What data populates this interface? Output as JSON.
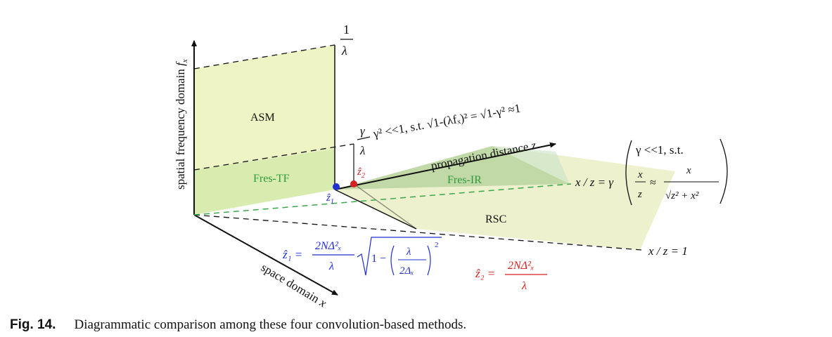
{
  "figure": {
    "axes": {
      "vertical": "spatial frequency domain",
      "vertical_var": "f",
      "vertical_sub": "x",
      "depth": "space domain",
      "depth_var": "x",
      "horizontal": "propagation distance",
      "horizontal_var": "z"
    },
    "regions": {
      "asm": "ASM",
      "fres_tf": "Fres-TF",
      "fres_ir": "Fres-IR",
      "rsc": "RSC"
    },
    "labels": {
      "top_num": "1",
      "top_den": "λ",
      "gamma_num": "γ",
      "gamma_den": "λ",
      "gamma_cond": "γ² <<1, s.t. √1-(λfₓ)² = √1-γ² ≈1",
      "line_gamma": "x / z = γ",
      "line_one": "x / z = 1",
      "cond2_line1": "γ <<1, s.t.",
      "cond2_x": "x",
      "cond2_z": "z",
      "cond2_approx": "≈",
      "cond2_rhs_num": "x",
      "cond2_rhs_den": "√z² + x²",
      "z1_hat": "ẑ",
      "z1_sub": "1",
      "z2_hat": "ẑ",
      "z2_sub": "2"
    },
    "formulas": {
      "z1_lhs": "ẑ₁ =",
      "z1_num": "2NΔ²ₓ",
      "z1_den": "λ",
      "z1_sqrt_one": "1 −",
      "z1_inner_num": "λ",
      "z1_inner_den": "2Δₓ",
      "z1_power": "2",
      "z2_lhs": "ẑ₂ =",
      "z2_num": "2NΔ²ₓ",
      "z2_den": "λ"
    },
    "colors": {
      "asm_fill": "#eef4c4",
      "fres_tf_fill": "#d8ecb0",
      "fres_ir_fill": "#b8d4a0",
      "rsc_fill": "#ecefc8",
      "green_text": "#2e9a3a",
      "blue": "#1f2fd0",
      "red": "#d42020",
      "dashed_green": "#3aa84a"
    }
  },
  "caption": {
    "label": "Fig. 14.",
    "text": "Diagrammatic comparison among these four convolution-based methods."
  }
}
